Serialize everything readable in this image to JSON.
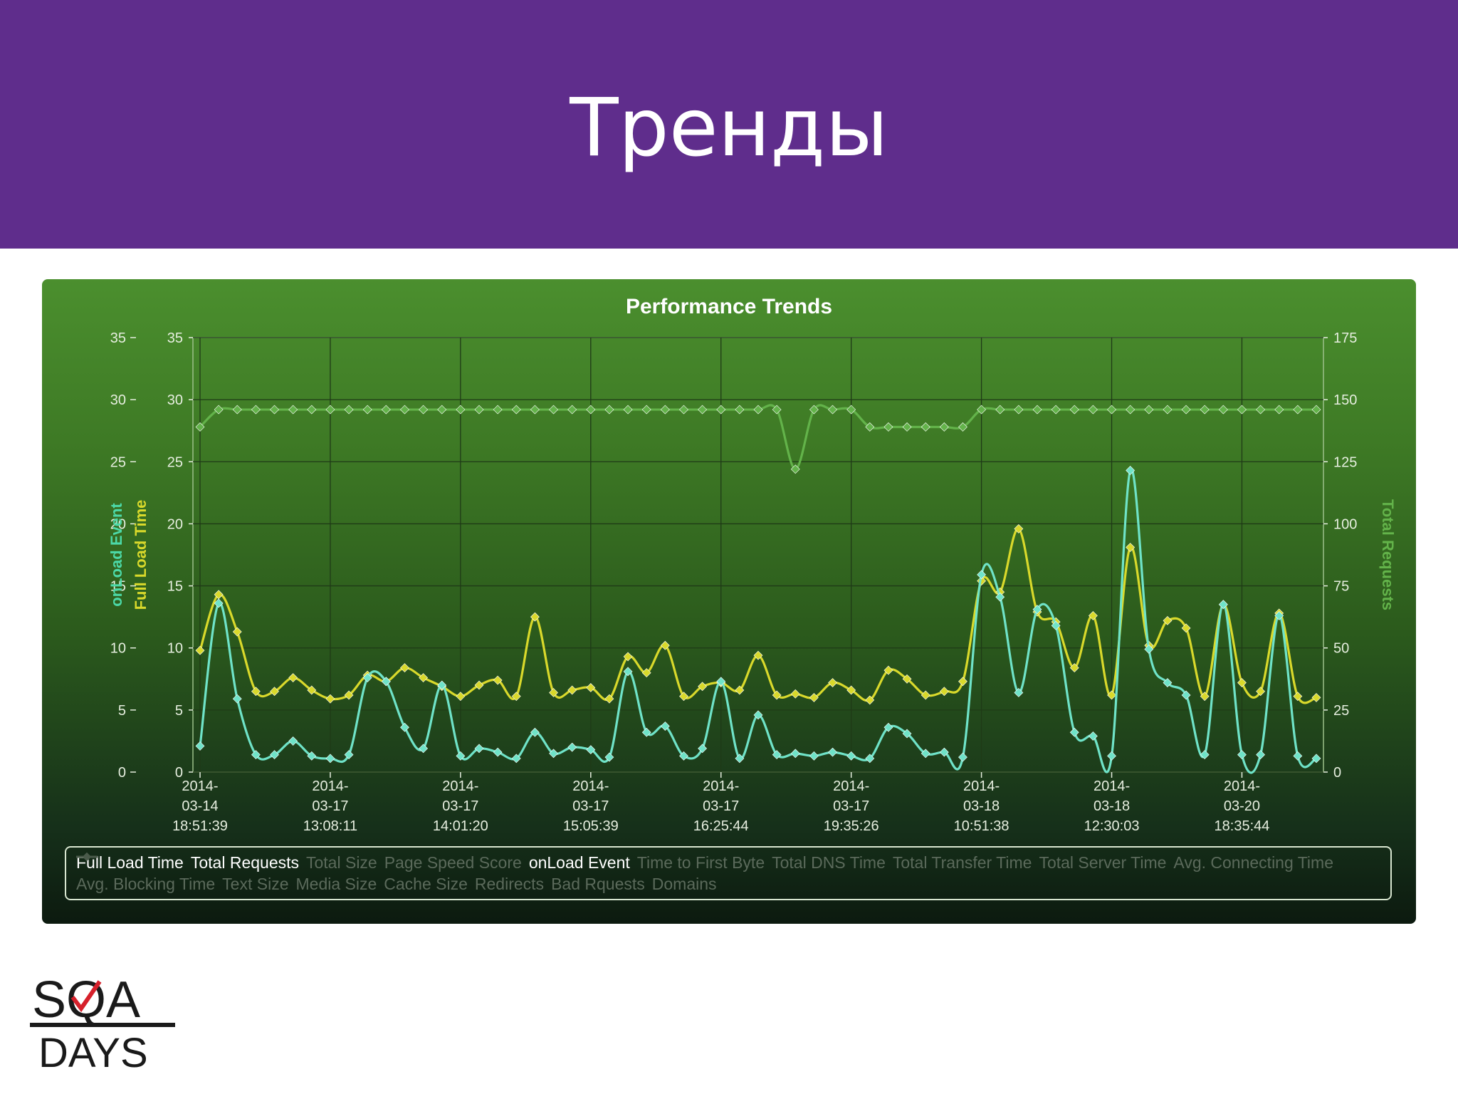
{
  "slide": {
    "title": "Тренды"
  },
  "logo": {
    "line1": "SQA",
    "line2": "DAYS",
    "mark": "red-check"
  },
  "colors": {
    "header": "#5f2d8c",
    "full_load": "#d9d92b",
    "total_requests": "#63b34a",
    "onload": "#6fe3c8"
  },
  "chart_data": {
    "type": "line",
    "title": "Performance Trends",
    "y_left_outer": {
      "label": "onLoad Event",
      "range": [
        0,
        35
      ],
      "ticks": [
        "0",
        "5",
        "10",
        "15",
        "20",
        "25",
        "30",
        "35"
      ]
    },
    "y_left_inner": {
      "label": "Full Load Time",
      "range": [
        0,
        35
      ],
      "ticks": [
        "0",
        "5",
        "10",
        "15",
        "20",
        "25",
        "30",
        "35"
      ]
    },
    "y_right": {
      "label": "Total Requests",
      "range": [
        0,
        175
      ],
      "ticks": [
        "0",
        "25",
        "50",
        "75",
        "100",
        "125",
        "150",
        "175"
      ]
    },
    "x_tick_labels": [
      [
        "2014-",
        "03-14",
        "18:51:39"
      ],
      [
        "2014-",
        "03-17",
        "13:08:11"
      ],
      [
        "2014-",
        "03-17",
        "14:01:20"
      ],
      [
        "2014-",
        "03-17",
        "15:05:39"
      ],
      [
        "2014-",
        "03-17",
        "16:25:44"
      ],
      [
        "2014-",
        "03-17",
        "19:35:26"
      ],
      [
        "2014-",
        "03-18",
        "10:51:38"
      ],
      [
        "2014-",
        "03-18",
        "12:30:03"
      ],
      [
        "2014-",
        "03-20",
        "18:35:44"
      ]
    ],
    "x_tick_sample_index": [
      0,
      7,
      14,
      21,
      28,
      35,
      42,
      49,
      56
    ],
    "grid": true,
    "series": [
      {
        "name": "Full Load Time",
        "axis": "left",
        "color": "#d9d92b",
        "values": [
          9.8,
          14.3,
          11.3,
          6.5,
          6.5,
          7.6,
          6.6,
          5.9,
          6.2,
          7.8,
          7.3,
          8.4,
          7.6,
          6.9,
          6.1,
          7.0,
          7.4,
          6.1,
          12.5,
          6.4,
          6.6,
          6.8,
          5.9,
          9.3,
          8.0,
          10.2,
          6.1,
          6.9,
          7.2,
          6.6,
          9.4,
          6.2,
          6.3,
          6.0,
          7.2,
          6.6,
          5.8,
          8.2,
          7.5,
          6.2,
          6.5,
          7.3,
          15.4,
          14.5,
          19.6,
          12.9,
          12.1,
          8.4,
          12.6,
          6.2,
          18.1,
          10.2,
          12.2,
          11.6,
          6.1,
          13.5,
          7.2,
          6.5,
          12.8,
          6.1,
          6.0
        ]
      },
      {
        "name": "Total Requests",
        "axis": "right",
        "color": "#63b34a",
        "values": [
          139,
          146,
          146,
          146,
          146,
          146,
          146,
          146,
          146,
          146,
          146,
          146,
          146,
          146,
          146,
          146,
          146,
          146,
          146,
          146,
          146,
          146,
          146,
          146,
          146,
          146,
          146,
          146,
          146,
          146,
          146,
          146,
          122,
          146,
          146,
          146,
          139,
          139,
          139,
          139,
          139,
          139,
          146,
          146,
          146,
          146,
          146,
          146,
          146,
          146,
          146,
          146,
          146,
          146,
          146,
          146,
          146,
          146,
          146,
          146,
          146
        ]
      },
      {
        "name": "onLoad Event",
        "axis": "left",
        "color": "#6fe3c8",
        "values": [
          2.1,
          13.6,
          5.9,
          1.4,
          1.4,
          2.5,
          1.3,
          1.1,
          1.4,
          7.6,
          7.3,
          3.6,
          1.9,
          7.0,
          1.3,
          1.9,
          1.6,
          1.1,
          3.2,
          1.5,
          2.0,
          1.8,
          1.2,
          8.1,
          3.2,
          3.7,
          1.3,
          1.9,
          7.3,
          1.1,
          4.6,
          1.4,
          1.5,
          1.3,
          1.6,
          1.3,
          1.1,
          3.6,
          3.1,
          1.5,
          1.6,
          1.2,
          15.9,
          14.1,
          6.4,
          13.1,
          11.8,
          3.2,
          2.9,
          1.3,
          24.3,
          9.9,
          7.2,
          6.2,
          1.4,
          13.5,
          1.4,
          1.4,
          12.6,
          1.3,
          1.1
        ]
      }
    ],
    "legend": {
      "placement": "bottom",
      "items": [
        {
          "label": "Full Load Time",
          "active": true,
          "color": "#d9d92b"
        },
        {
          "label": "Total Requests",
          "active": true,
          "color": "#63b34a"
        },
        {
          "label": "Total Size",
          "active": false
        },
        {
          "label": "Page Speed Score",
          "active": false
        },
        {
          "label": "onLoad Event",
          "active": true,
          "color": "#6fe3c8"
        },
        {
          "label": "Time to First Byte",
          "active": false
        },
        {
          "label": "Total DNS Time",
          "active": false
        },
        {
          "label": "Total Transfer Time",
          "active": false
        },
        {
          "label": "Total Server Time",
          "active": false
        },
        {
          "label": "Avg. Connecting Time",
          "active": false
        },
        {
          "label": "Avg. Blocking Time",
          "active": false
        },
        {
          "label": "Text Size",
          "active": false
        },
        {
          "label": "Media Size",
          "active": false
        },
        {
          "label": "Cache Size",
          "active": false
        },
        {
          "label": "Redirects",
          "active": false
        },
        {
          "label": "Bad Rquests",
          "active": false
        },
        {
          "label": "Domains",
          "active": false
        }
      ]
    }
  }
}
